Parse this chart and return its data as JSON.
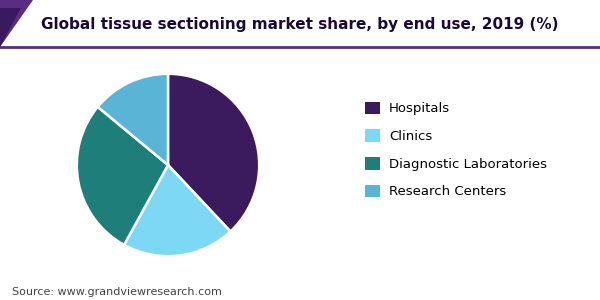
{
  "title": "Global tissue sectioning market share, by end use, 2019 (%)",
  "values": [
    38,
    20,
    28,
    14
  ],
  "colors": [
    "#3b1a5e",
    "#7dd8f5",
    "#1e7f7a",
    "#5ab4d6"
  ],
  "startangle": 90,
  "legend_labels": [
    "Hospitals",
    "Clinics",
    "Diagnostic Laboratories",
    "Research Centers"
  ],
  "source_text": "Source: www.grandviewresearch.com",
  "title_fontsize": 11,
  "legend_fontsize": 9.5,
  "source_fontsize": 8,
  "title_color": "#1a0a3a",
  "accent_line_color": "#5a2d82",
  "triangle_color1": "#5a2d82",
  "triangle_color2": "#3a1a5e"
}
